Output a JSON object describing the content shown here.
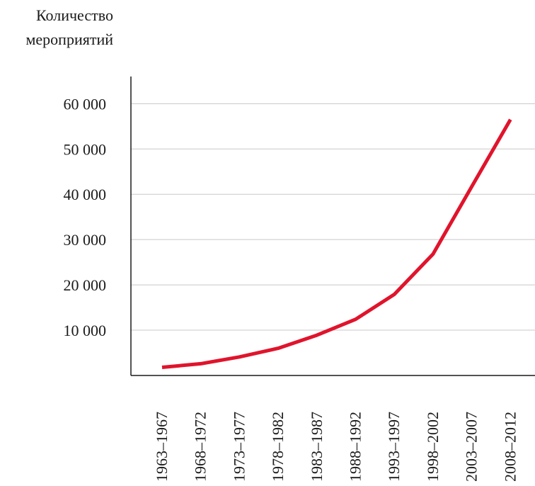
{
  "chart_data": {
    "type": "line",
    "title": "",
    "ylabel_lines": [
      "Количество",
      "мероприятий"
    ],
    "xlabel": "",
    "categories": [
      "1963–1967",
      "1968–1972",
      "1973–1977",
      "1978–1982",
      "1983–1987",
      "1988–1992",
      "1993–1997",
      "1998–2002",
      "2003–2007",
      "2008–2012"
    ],
    "y_ticks": [
      10000,
      20000,
      30000,
      40000,
      50000,
      60000
    ],
    "y_tick_labels": [
      "10 000",
      "20 000",
      "30 000",
      "40 000",
      "50 000",
      "60 000"
    ],
    "ylim": [
      0,
      66000
    ],
    "grid": true,
    "series": [
      {
        "values": [
          1800,
          2600,
          4100,
          6000,
          8900,
          12400,
          17900,
          26800,
          41700,
          56500
        ]
      }
    ],
    "colors": {
      "line": "#e0142c",
      "grid": "#c8c8c8",
      "axis": "#1a1a1a",
      "text": "#1a1a1a"
    }
  }
}
